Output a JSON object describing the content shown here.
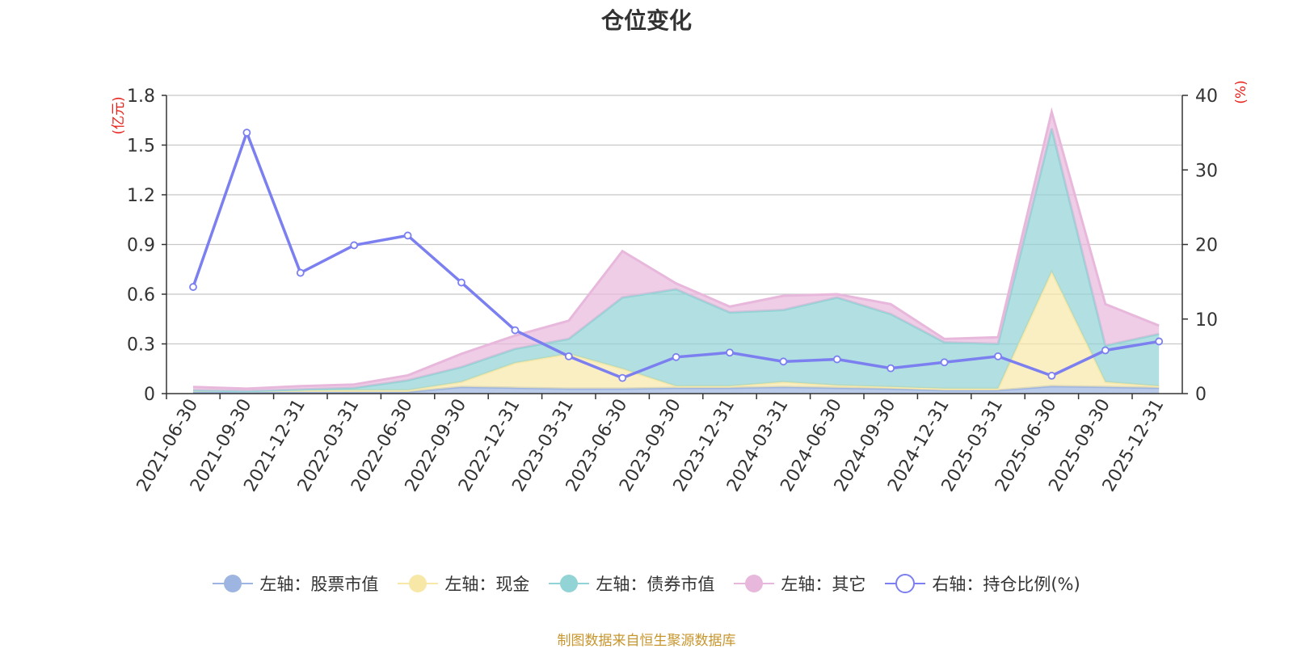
{
  "chart_data": {
    "type": "area",
    "title": "仓位变化",
    "categories": [
      "2021-06-30",
      "2021-09-30",
      "2021-12-31",
      "2022-03-31",
      "2022-06-30",
      "2022-09-30",
      "2022-12-31",
      "2023-03-31",
      "2023-06-30",
      "2023-09-30",
      "2023-12-31",
      "2024-03-31",
      "2024-06-30",
      "2024-09-30",
      "2024-12-31",
      "2025-03-31",
      "2025-06-30",
      "2025-09-30",
      "2025-12-31"
    ],
    "left_axis": {
      "unit": "(亿元)",
      "min": 0,
      "max": 1.8,
      "ticks": [
        "0",
        "0.3",
        "0.6",
        "0.9",
        "1.2",
        "1.5",
        "1.8"
      ],
      "tick_values": [
        0,
        0.3,
        0.6,
        0.9,
        1.2,
        1.5,
        1.8
      ]
    },
    "right_axis": {
      "unit": "(%)",
      "min": 0,
      "max": 40,
      "ticks": [
        "0",
        "10",
        "20",
        "30",
        "40"
      ],
      "tick_values": [
        0,
        10,
        20,
        30,
        40
      ]
    },
    "stacked_series": [
      {
        "name": "左轴：股票市值",
        "color": "#9db5e0",
        "values": [
          0.01,
          0.01,
          0.01,
          0.01,
          0.01,
          0.04,
          0.035,
          0.03,
          0.03,
          0.035,
          0.035,
          0.04,
          0.035,
          0.03,
          0.02,
          0.02,
          0.045,
          0.04,
          0.035
        ]
      },
      {
        "name": "左轴：现金",
        "color": "#f8e8a8",
        "values": [
          0.01,
          0.005,
          0.01,
          0.01,
          0.01,
          0.03,
          0.15,
          0.21,
          0.12,
          0.01,
          0.01,
          0.03,
          0.015,
          0.01,
          0.01,
          0.01,
          0.69,
          0.03,
          0.01
        ]
      },
      {
        "name": "左轴：债券市值",
        "color": "#92d3d5",
        "values": [
          0,
          0,
          0.005,
          0.015,
          0.06,
          0.09,
          0.085,
          0.09,
          0.43,
          0.585,
          0.445,
          0.435,
          0.53,
          0.44,
          0.28,
          0.27,
          0.865,
          0.22,
          0.315
        ]
      },
      {
        "name": "左轴：其它",
        "color": "#e8b8dc",
        "values": [
          0.02,
          0.015,
          0.02,
          0.02,
          0.03,
          0.08,
          0.08,
          0.11,
          0.28,
          0.035,
          0.035,
          0.085,
          0.02,
          0.06,
          0.02,
          0.04,
          0.1,
          0.25,
          0.05
        ]
      }
    ],
    "line_series": {
      "name": "右轴：持仓比例(%)",
      "color": "#7b7ff0",
      "axis": "right",
      "values": [
        14.3,
        35.0,
        16.2,
        19.9,
        21.2,
        14.9,
        8.5,
        5.0,
        2.1,
        4.9,
        5.5,
        4.3,
        4.6,
        3.4,
        4.2,
        5.0,
        2.4,
        5.8,
        7.0
      ]
    },
    "legend_position": "bottom",
    "grid": true
  },
  "source_note": "制图数据来自恒生聚源数据库"
}
